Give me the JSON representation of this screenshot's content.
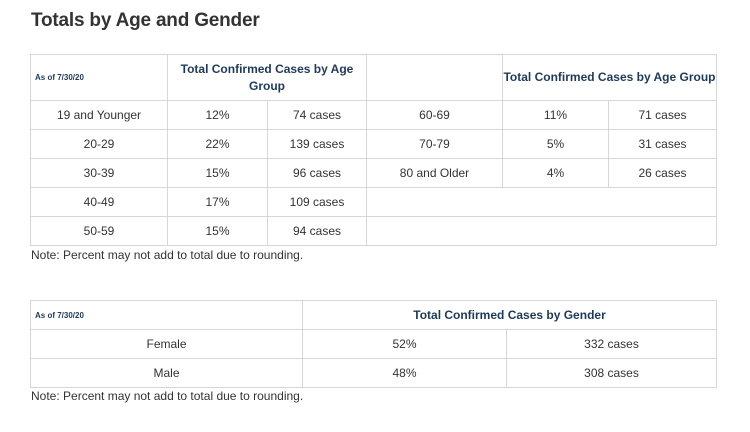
{
  "page": {
    "title": "Totals by Age and Gender"
  },
  "age_table": {
    "as_of": "As of 7/30/20",
    "header_left": "Total Confirmed Cases by Age Group",
    "header_right": "Total Confirmed Cases by Age Group",
    "rows": [
      {
        "left_group": "19 and Younger",
        "left_pct": "12%",
        "left_cases": "74 cases",
        "right_group": "60-69",
        "right_pct": "11%",
        "right_cases": "71 cases"
      },
      {
        "left_group": "20-29",
        "left_pct": "22%",
        "left_cases": "139 cases",
        "right_group": "70-79",
        "right_pct": "5%",
        "right_cases": "31 cases"
      },
      {
        "left_group": "30-39",
        "left_pct": "15%",
        "left_cases": "96 cases",
        "right_group": "80 and Older",
        "right_pct": "4%",
        "right_cases": "26 cases"
      },
      {
        "left_group": "40-49",
        "left_pct": "17%",
        "left_cases": "109 cases",
        "right_group": "",
        "right_pct": "",
        "right_cases": ""
      },
      {
        "left_group": "50-59",
        "left_pct": "15%",
        "left_cases": "94 cases",
        "right_group": "",
        "right_pct": "",
        "right_cases": ""
      }
    ],
    "note": "Note: Percent may not add to total due to rounding."
  },
  "gender_table": {
    "as_of": "As of 7/30/20",
    "header": "Total Confirmed Cases by Gender",
    "rows": [
      {
        "gender": "Female",
        "pct": "52%",
        "cases": "332 cases"
      },
      {
        "gender": "Male",
        "pct": "48%",
        "cases": "308 cases"
      }
    ],
    "note": "Note: Percent may not add to total due to rounding."
  }
}
